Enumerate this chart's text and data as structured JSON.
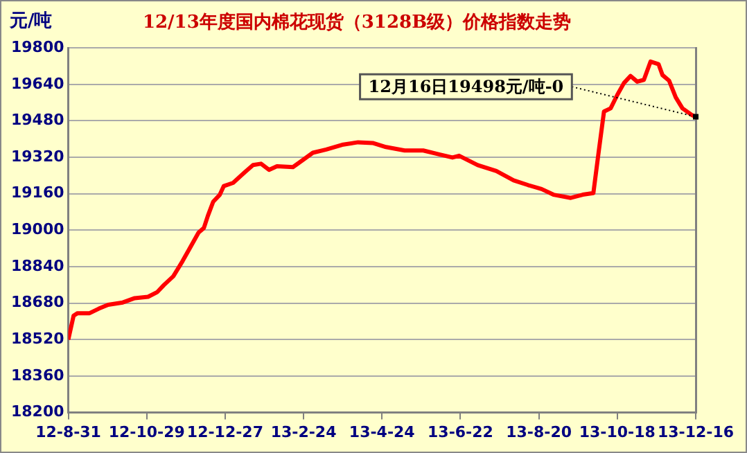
{
  "chart_data": {
    "type": "line",
    "title": "12/13年度国内棉花现货（3128B级）价格指数走势",
    "ylabel": "元/吨",
    "series": [
      {
        "color": "#ff0000",
        "x": [
          "2012-08-31",
          "2012-09-04",
          "2012-09-07",
          "2012-09-16",
          "2012-09-23",
          "2012-09-30",
          "2012-10-11",
          "2012-10-20",
          "2012-10-30",
          "2012-11-06",
          "2012-11-11",
          "2012-11-18",
          "2012-11-25",
          "2012-11-30",
          "2012-12-07",
          "2012-12-11",
          "2012-12-14",
          "2012-12-18",
          "2012-12-23",
          "2012-12-26",
          "2013-01-02",
          "2013-01-11",
          "2013-01-17",
          "2013-01-23",
          "2013-01-29",
          "2013-02-04",
          "2013-02-16",
          "2013-02-22",
          "2013-03-03",
          "2013-03-13",
          "2013-03-25",
          "2013-04-06",
          "2013-04-17",
          "2013-04-27",
          "2013-05-11",
          "2013-05-25",
          "2013-06-06",
          "2013-06-16",
          "2013-06-21",
          "2013-07-05",
          "2013-07-19",
          "2013-08-01",
          "2013-08-12",
          "2013-08-22",
          "2013-08-31",
          "2013-09-13",
          "2013-09-22",
          "2013-09-30",
          "2013-10-04",
          "2013-10-08",
          "2013-10-13",
          "2013-10-18",
          "2013-10-23",
          "2013-10-28",
          "2013-11-02",
          "2013-11-07",
          "2013-11-12",
          "2013-11-18",
          "2013-11-21",
          "2013-11-26",
          "2013-12-01",
          "2013-12-06",
          "2013-12-13",
          "2013-12-16"
        ],
        "values": [
          18520,
          18625,
          18636,
          18636,
          18656,
          18673,
          18683,
          18702,
          18708,
          18729,
          18760,
          18798,
          18865,
          18917,
          18990,
          19010,
          19063,
          19125,
          19156,
          19194,
          19208,
          19256,
          19286,
          19292,
          19265,
          19281,
          19277,
          19302,
          19340,
          19354,
          19375,
          19386,
          19383,
          19365,
          19350,
          19350,
          19333,
          19319,
          19327,
          19286,
          19260,
          19219,
          19198,
          19181,
          19156,
          19142,
          19156,
          19163,
          19344,
          19521,
          19535,
          19594,
          19646,
          19677,
          19652,
          19660,
          19740,
          19729,
          19681,
          19656,
          19583,
          19535,
          19506,
          19498
        ]
      }
    ],
    "xlim": [
      "2012-08-31",
      "2013-12-16"
    ],
    "xticks": [
      {
        "value": "2012-08-31",
        "label": "12-8-31"
      },
      {
        "value": "2012-10-29",
        "label": "12-10-29"
      },
      {
        "value": "2012-12-27",
        "label": "12-12-27"
      },
      {
        "value": "2013-02-24",
        "label": "13-2-24"
      },
      {
        "value": "2013-04-24",
        "label": "13-4-24"
      },
      {
        "value": "2013-06-22",
        "label": "13-6-22"
      },
      {
        "value": "2013-08-20",
        "label": "13-8-20"
      },
      {
        "value": "2013-10-18",
        "label": "13-10-18"
      },
      {
        "value": "2013-12-16",
        "label": "13-12-16"
      }
    ],
    "ylim": [
      18200,
      19800
    ],
    "yticks": [
      18200,
      18360,
      18520,
      18680,
      18840,
      19000,
      19160,
      19320,
      19480,
      19640,
      19800
    ],
    "grid": "y",
    "annotations": [
      {
        "text": "12月16日19498元/吨-0",
        "x": "2013-12-16",
        "y": 19498
      }
    ]
  }
}
